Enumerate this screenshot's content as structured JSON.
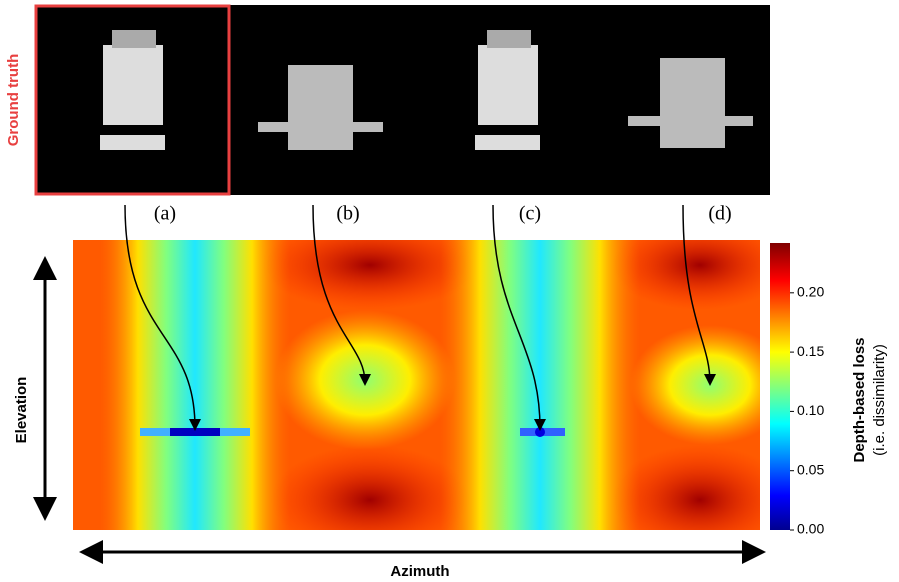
{
  "panel_label": "Ground truth",
  "views": [
    "(a)",
    "(b)",
    "(c)",
    "(d)"
  ],
  "axes": {
    "y_label": "Elevation",
    "x_label": "Azimuth"
  },
  "colorbar": {
    "title": "Depth-based loss",
    "subtitle": "(i.e. dissimilarity)",
    "lim": [
      0,
      0.242
    ],
    "ticks": [
      {
        "value": 0,
        "label": "0.00"
      },
      0.05,
      {
        "value": 0.1,
        "label": "0.10"
      },
      0.15,
      {
        "value": 0.2,
        "label": "0.20"
      }
    ]
  }
}
